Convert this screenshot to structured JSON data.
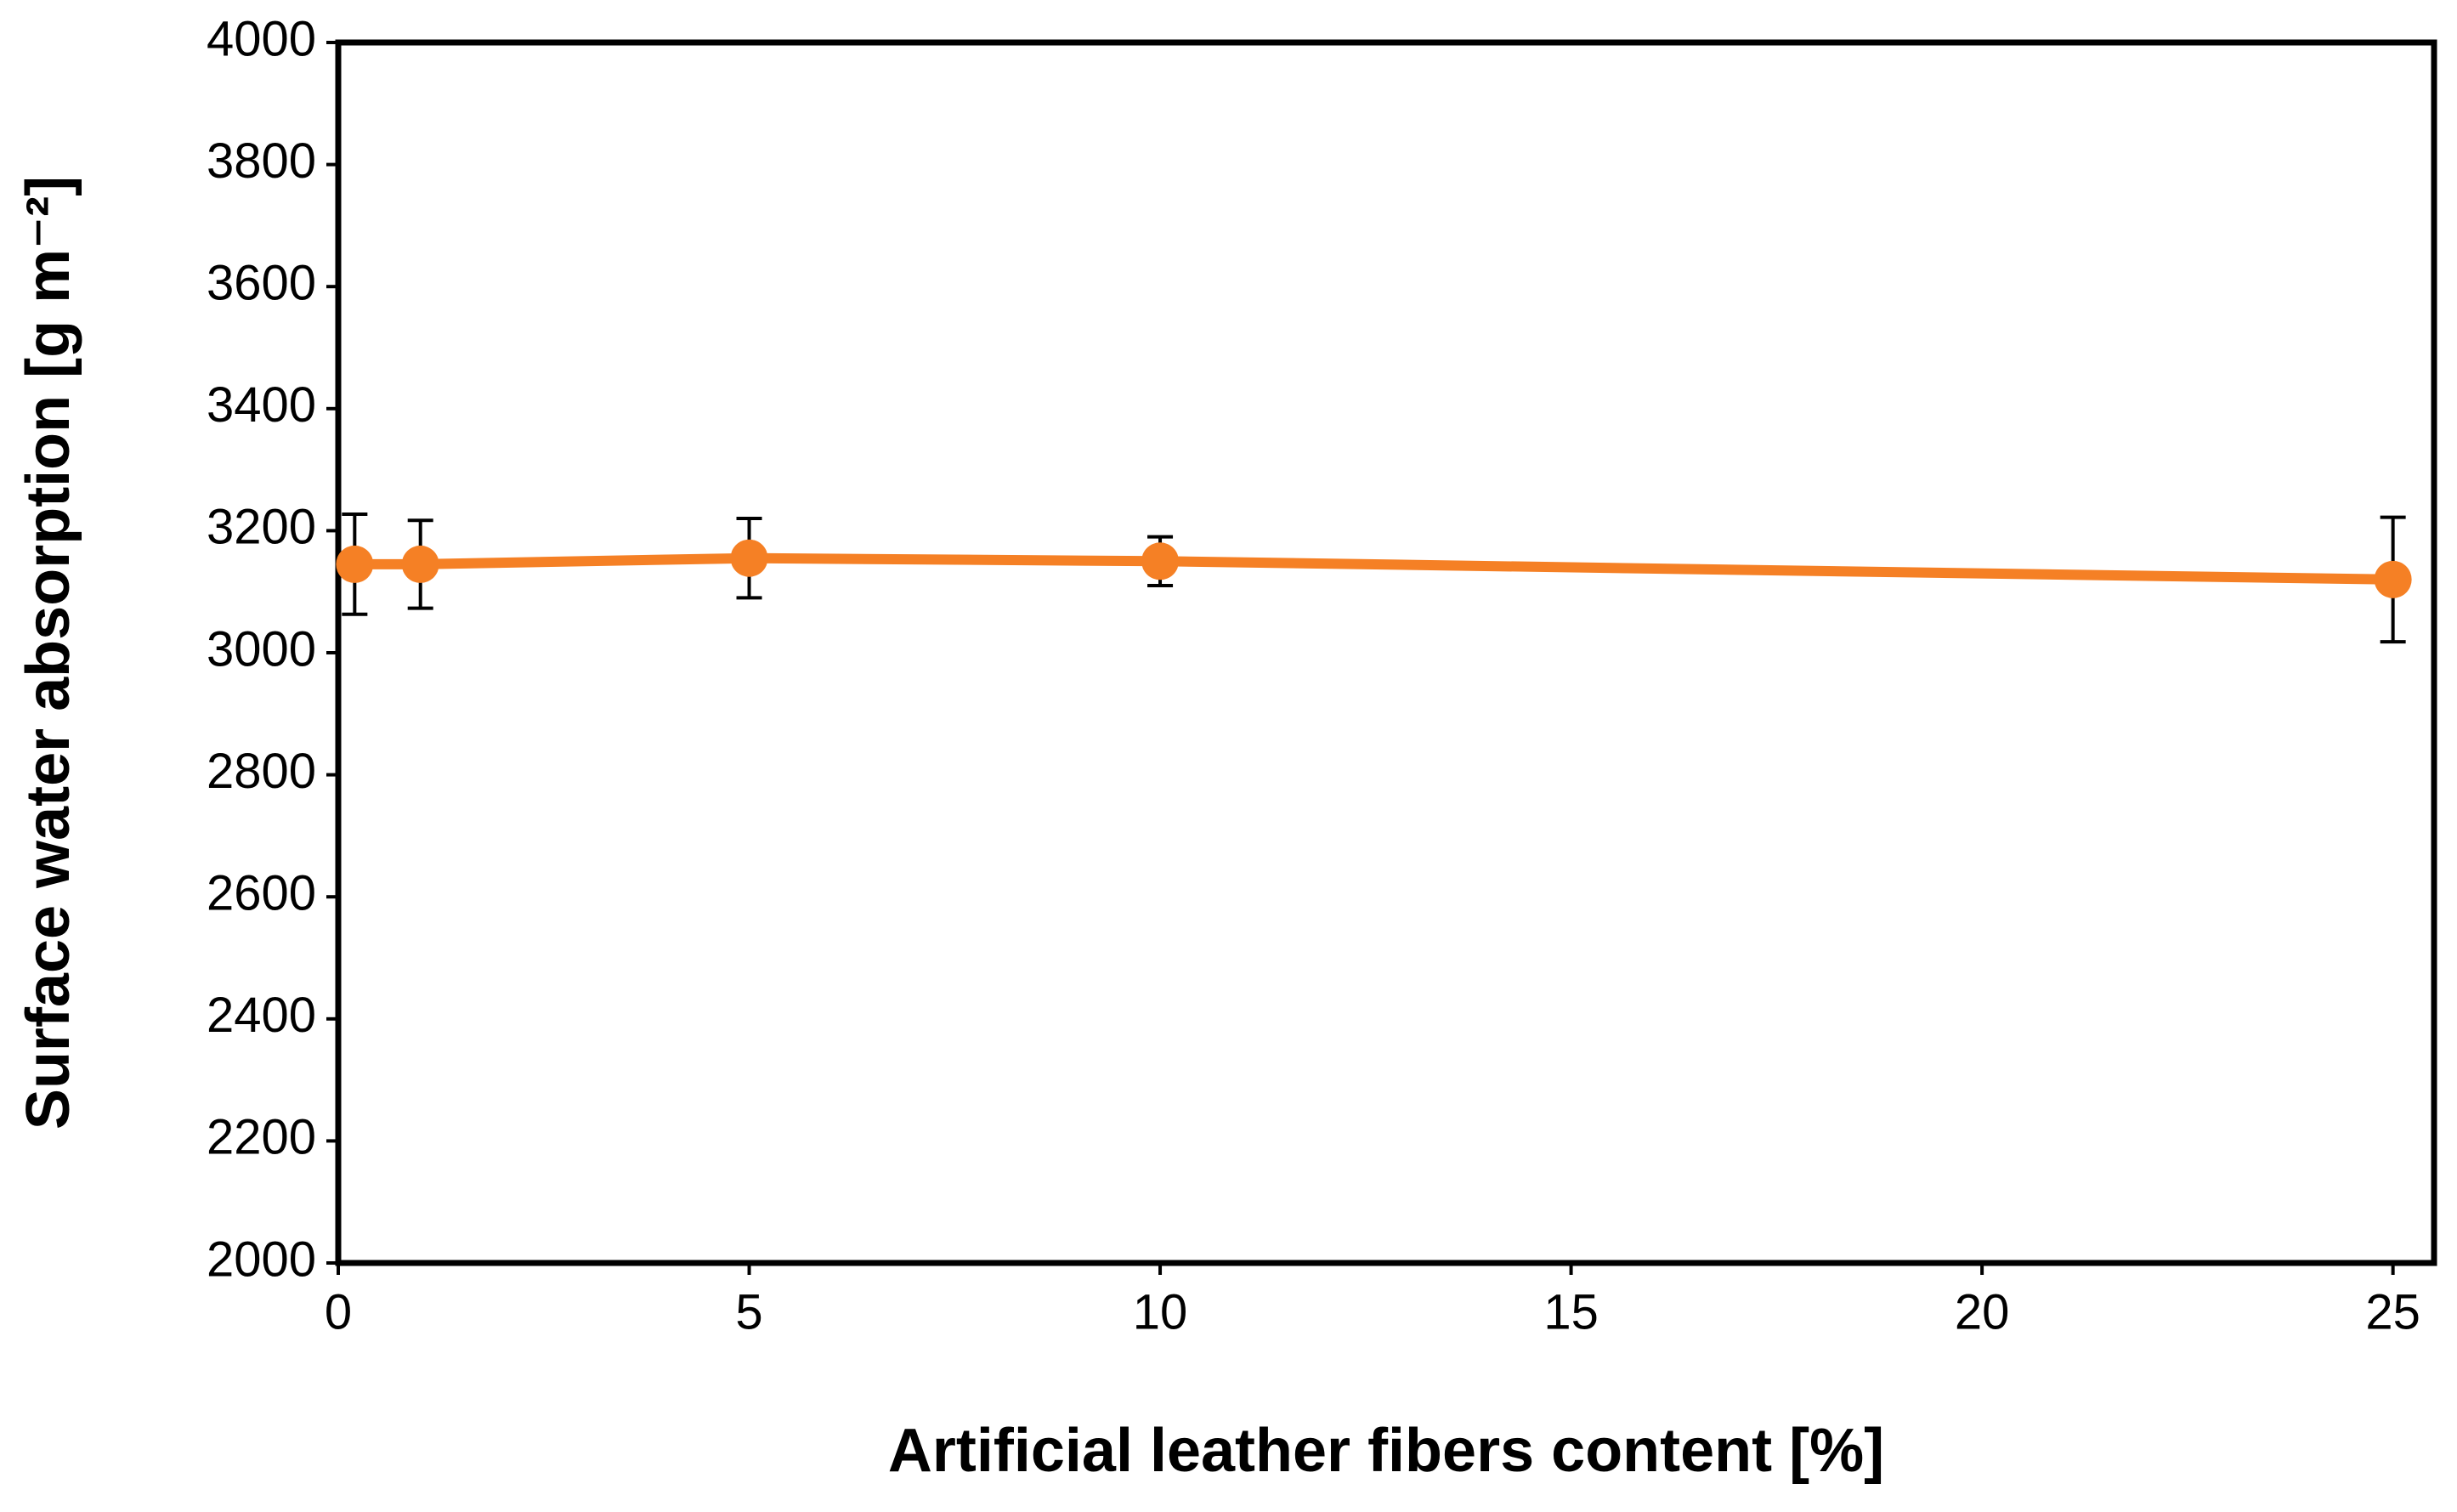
{
  "chart_data": {
    "type": "line",
    "x_label": "Artificial leather fibers content [%]",
    "y_label": "Surface water absorption [g m⁻²]",
    "x": [
      0.2,
      1,
      5,
      10,
      25
    ],
    "series": [
      {
        "color": "#f58025",
        "values": [
          3145,
          3145,
          3155,
          3150,
          3120
        ],
        "errors": [
          82,
          72,
          65,
          40,
          102
        ]
      }
    ],
    "xlim": [
      0,
      25.5
    ],
    "xticks": [
      0,
      5,
      10,
      15,
      20,
      25
    ],
    "ylim": [
      2000,
      4000
    ],
    "yticks": [
      2000,
      2200,
      2400,
      2600,
      2800,
      3000,
      3200,
      3400,
      3600,
      3800,
      4000
    ],
    "grid": false
  }
}
